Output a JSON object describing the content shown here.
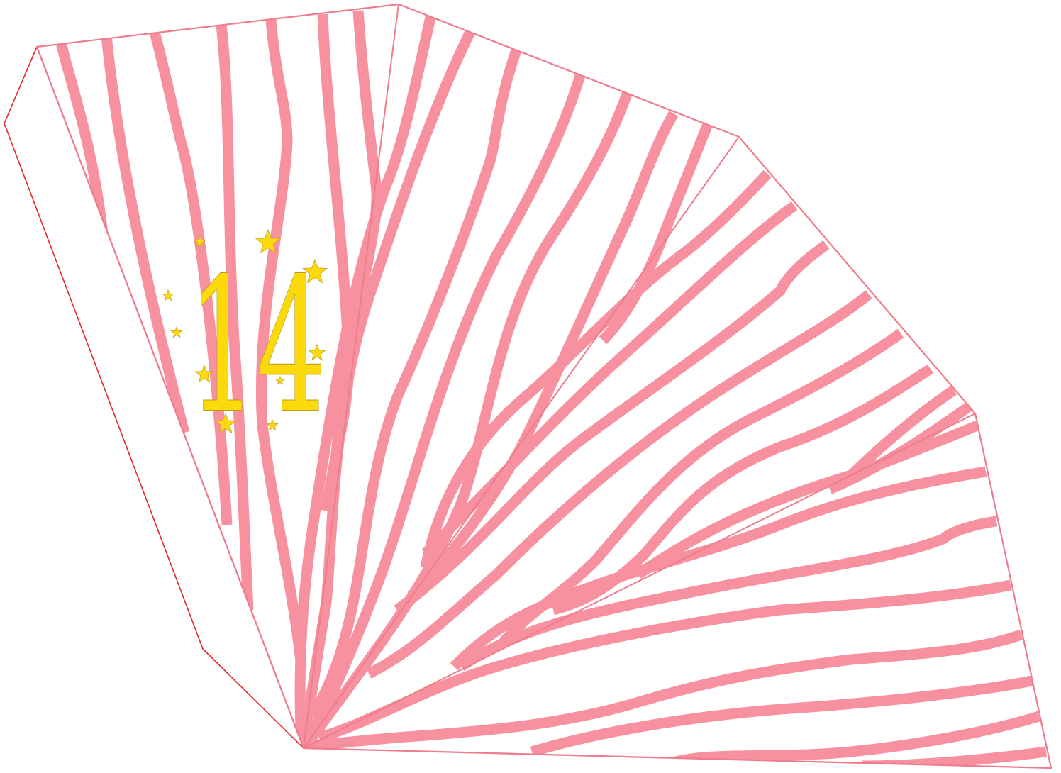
{
  "template": {
    "number_label": "14",
    "colors": {
      "stripe": "#f7909f",
      "outline": "#ef7b8c",
      "glue_tab_edge": "#e52626",
      "number_fill": "#fcd90a",
      "number_stroke": "#b59a26"
    },
    "icons": [
      "star-icon"
    ]
  }
}
